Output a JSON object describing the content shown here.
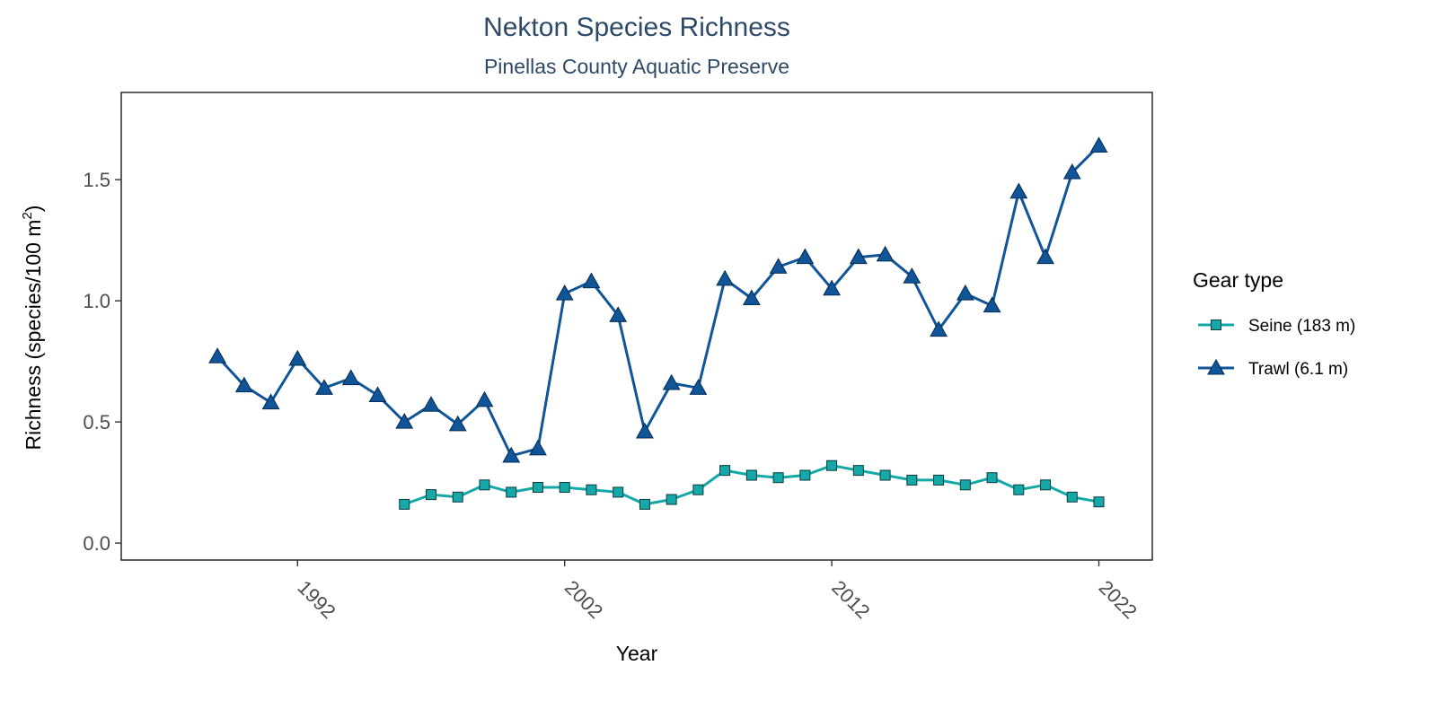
{
  "chart_data": {
    "type": "line",
    "title": "Nekton Species Richness",
    "subtitle": "Pinellas County Aquatic Preserve",
    "xlabel": "Year",
    "ylabel": "Richness (species/100 m²)",
    "ylabel_parts": {
      "main": "Richness (species/100 m",
      "sup": "2",
      "end": ")"
    },
    "xlim": [
      1985.4,
      2024.0
    ],
    "ylim": [
      -0.07,
      1.86
    ],
    "xticks": [
      1992,
      2002,
      2012,
      2022
    ],
    "yticks": [
      0.0,
      0.5,
      1.0,
      1.5
    ],
    "ytick_labels": [
      "0.0",
      "0.5",
      "1.0",
      "1.5"
    ],
    "grid": false,
    "legend": {
      "title": "Gear type",
      "position": "right"
    },
    "series": [
      {
        "name": "Seine (183 m)",
        "color": "#14A8A8",
        "marker": "square",
        "x": [
          1996,
          1997,
          1998,
          1999,
          2000,
          2001,
          2002,
          2003,
          2004,
          2005,
          2006,
          2007,
          2008,
          2009,
          2010,
          2011,
          2012,
          2013,
          2014,
          2015,
          2016,
          2017,
          2018,
          2019,
          2020,
          2021,
          2022
        ],
        "y": [
          0.16,
          0.2,
          0.19,
          0.24,
          0.21,
          0.23,
          0.23,
          0.22,
          0.21,
          0.16,
          0.18,
          0.22,
          0.3,
          0.28,
          0.27,
          0.28,
          0.32,
          0.3,
          0.28,
          0.26,
          0.26,
          0.24,
          0.27,
          0.22,
          0.24,
          0.19,
          0.17
        ]
      },
      {
        "name": "Trawl (6.1 m)",
        "color": "#0F5598",
        "marker": "triangle",
        "x": [
          1989,
          1990,
          1991,
          1992,
          1993,
          1994,
          1995,
          1996,
          1997,
          1998,
          1999,
          2000,
          2001,
          2002,
          2003,
          2004,
          2005,
          2006,
          2007,
          2008,
          2009,
          2010,
          2011,
          2012,
          2013,
          2014,
          2015,
          2016,
          2017,
          2018,
          2019,
          2020,
          2021,
          2022
        ],
        "y": [
          0.77,
          0.65,
          0.58,
          0.76,
          0.64,
          0.68,
          0.61,
          0.5,
          0.57,
          0.49,
          0.59,
          0.36,
          0.39,
          1.03,
          1.08,
          0.94,
          0.46,
          0.66,
          0.64,
          1.09,
          1.01,
          1.14,
          1.18,
          1.05,
          1.18,
          1.19,
          1.1,
          0.88,
          1.03,
          0.98,
          1.45,
          1.18,
          1.53,
          1.64
        ]
      }
    ]
  }
}
